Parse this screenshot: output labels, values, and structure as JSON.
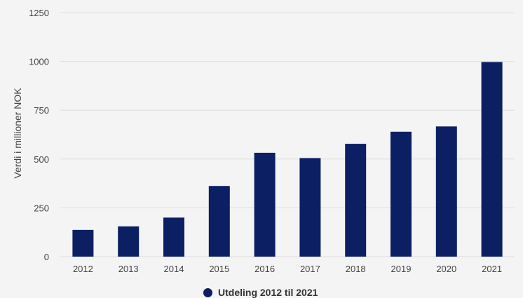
{
  "chart_data": {
    "type": "bar",
    "categories": [
      "2012",
      "2013",
      "2014",
      "2015",
      "2016",
      "2017",
      "2018",
      "2019",
      "2020",
      "2021"
    ],
    "series": [
      {
        "name": "Utdeling 2012 til 2021",
        "values": [
          137,
          155,
          200,
          362,
          532,
          505,
          578,
          640,
          667,
          997
        ]
      }
    ],
    "ylabel": "Verdi i millioner NOK",
    "xlabel": "",
    "ylim": [
      0,
      1250
    ],
    "yticks": [
      0,
      250,
      500,
      750,
      1000,
      1250
    ],
    "grid": true,
    "legend": "bottom",
    "colors": {
      "bar": "#0d1f63",
      "grid": "#dddddd",
      "background": "#f4f4f4"
    }
  }
}
